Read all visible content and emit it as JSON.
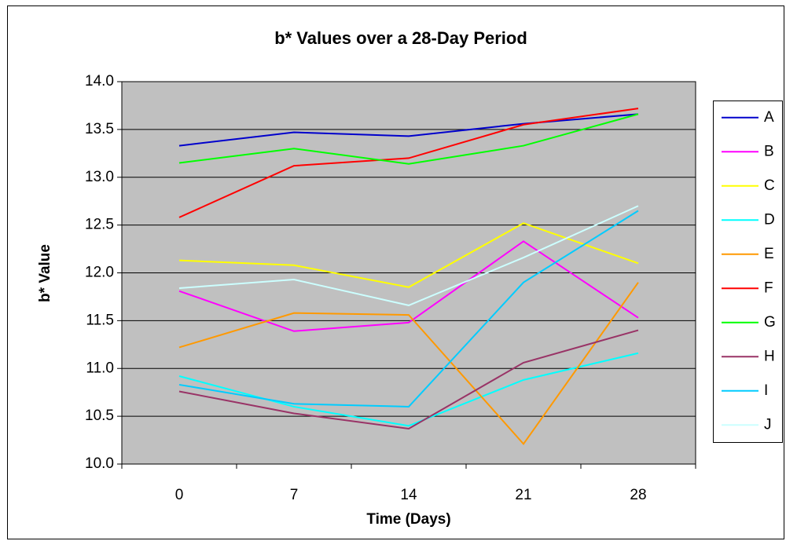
{
  "chart_data": {
    "type": "line",
    "title": "b* Values over a 28-Day Period",
    "x_label": "Time (Days)",
    "y_label": "b* Value",
    "categories": [
      "0",
      "7",
      "14",
      "21",
      "28"
    ],
    "series": [
      {
        "name": "A",
        "color": "#0000cc",
        "values": [
          13.33,
          13.47,
          13.43,
          13.56,
          13.66
        ]
      },
      {
        "name": "B",
        "color": "#ff00ff",
        "values": [
          11.81,
          11.39,
          11.48,
          12.33,
          11.53
        ]
      },
      {
        "name": "C",
        "color": "#ffff00",
        "values": [
          12.13,
          12.08,
          11.85,
          12.52,
          12.1
        ]
      },
      {
        "name": "D",
        "color": "#00ffff",
        "values": [
          10.92,
          10.6,
          10.4,
          10.88,
          11.16
        ]
      },
      {
        "name": "E",
        "color": "#ff9900",
        "values": [
          11.22,
          11.58,
          11.56,
          10.21,
          11.9
        ]
      },
      {
        "name": "F",
        "color": "#ff0000",
        "values": [
          12.58,
          13.12,
          13.2,
          13.55,
          13.72
        ]
      },
      {
        "name": "G",
        "color": "#00ff00",
        "values": [
          13.15,
          13.3,
          13.14,
          13.33,
          13.66
        ]
      },
      {
        "name": "H",
        "color": "#993366",
        "values": [
          10.76,
          10.53,
          10.37,
          11.06,
          11.4
        ]
      },
      {
        "name": "I",
        "color": "#00ccff",
        "values": [
          10.83,
          10.63,
          10.6,
          11.9,
          12.65
        ]
      },
      {
        "name": "J",
        "color": "#ccffff",
        "values": [
          11.84,
          11.93,
          11.66,
          12.16,
          12.7
        ]
      }
    ],
    "ylim": [
      10,
      14
    ],
    "yticks": [
      {
        "value": 10,
        "label": "10.0"
      },
      {
        "value": 10.5,
        "label": "10.5"
      },
      {
        "value": 11,
        "label": "11.0"
      },
      {
        "value": 11.5,
        "label": "11.5"
      },
      {
        "value": 12,
        "label": "12.0"
      },
      {
        "value": 12.5,
        "label": "12.5"
      },
      {
        "value": 13,
        "label": "13.0"
      },
      {
        "value": 13.5,
        "label": "13.5"
      },
      {
        "value": 14,
        "label": "14.0"
      }
    ],
    "grid": true,
    "legend": "right",
    "plot_background": "#c0c0c0"
  }
}
